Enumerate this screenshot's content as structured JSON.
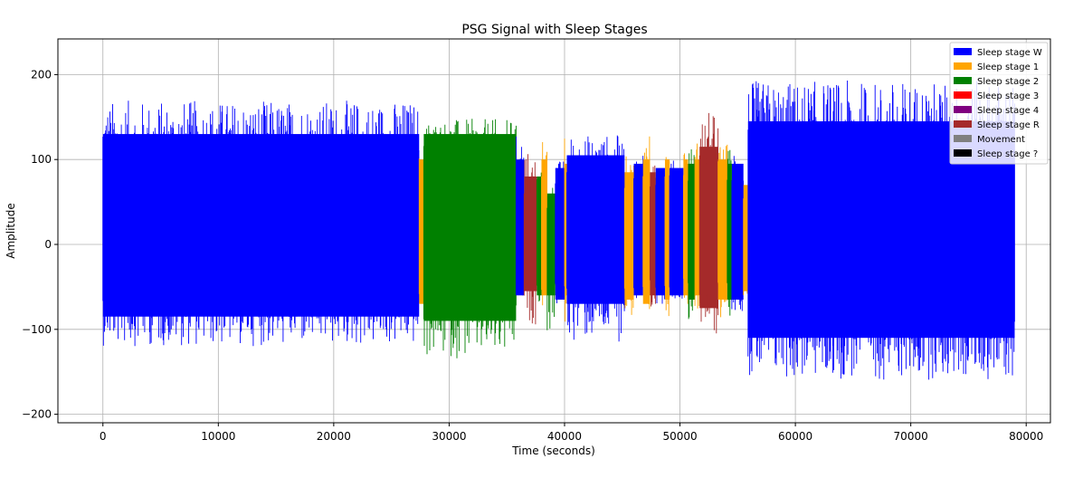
{
  "chart_data": {
    "type": "line",
    "title": "PSG Signal with Sleep Stages",
    "xlabel": "Time (seconds)",
    "ylabel": "Amplitude",
    "xlim": [
      -3900,
      82100
    ],
    "ylim": [
      -210,
      242
    ],
    "xticks": [
      0,
      10000,
      20000,
      30000,
      40000,
      50000,
      60000,
      70000,
      80000
    ],
    "yticks": [
      -200,
      -100,
      0,
      100,
      200
    ],
    "grid": true,
    "legend_position": "top-right",
    "legend": [
      {
        "name": "Sleep stage W",
        "color": "#0000ff"
      },
      {
        "name": "Sleep stage 1",
        "color": "#ffa500"
      },
      {
        "name": "Sleep stage 2",
        "color": "#008000"
      },
      {
        "name": "Sleep stage 3",
        "color": "#ff0000"
      },
      {
        "name": "Sleep stage 4",
        "color": "#800080"
      },
      {
        "name": "Sleep stage R",
        "color": "#a52a2a"
      },
      {
        "name": "Movement",
        "color": "#808080"
      },
      {
        "name": "Sleep stage ?",
        "color": "#000000"
      }
    ],
    "segments": [
      {
        "stage": "Sleep stage W",
        "start": 0,
        "end": 27400,
        "amplitude": [
          -85,
          130
        ],
        "peaks": [
          -120,
          170
        ]
      },
      {
        "stage": "Sleep stage 1",
        "start": 27400,
        "end": 27800,
        "amplitude": [
          -70,
          100
        ],
        "peaks": [
          -75,
          105
        ]
      },
      {
        "stage": "Sleep stage 2",
        "start": 27800,
        "end": 35800,
        "amplitude": [
          -90,
          130
        ],
        "peaks": [
          -135,
          148
        ]
      },
      {
        "stage": "Sleep stage W",
        "start": 35800,
        "end": 36500,
        "amplitude": [
          -60,
          100
        ],
        "peaks": [
          -70,
          130
        ]
      },
      {
        "stage": "Sleep stage R",
        "start": 36500,
        "end": 37600,
        "amplitude": [
          -55,
          80
        ],
        "peaks": [
          -95,
          115
        ]
      },
      {
        "stage": "Sleep stage 2",
        "start": 37600,
        "end": 38000,
        "amplitude": [
          -60,
          80
        ],
        "peaks": [
          -70,
          90
        ]
      },
      {
        "stage": "Sleep stage 1",
        "start": 38000,
        "end": 38500,
        "amplitude": [
          -60,
          100
        ],
        "peaks": [
          -80,
          125
        ]
      },
      {
        "stage": "Sleep stage 2",
        "start": 38500,
        "end": 39200,
        "amplitude": [
          -60,
          60
        ],
        "peaks": [
          -108,
          75
        ]
      },
      {
        "stage": "Sleep stage W",
        "start": 39200,
        "end": 40000,
        "amplitude": [
          -65,
          90
        ],
        "peaks": [
          -75,
          100
        ]
      },
      {
        "stage": "Sleep stage 1",
        "start": 40000,
        "end": 40200,
        "amplitude": [
          -60,
          95
        ],
        "peaks": [
          -100,
          135
        ]
      },
      {
        "stage": "Sleep stage W",
        "start": 40200,
        "end": 45200,
        "amplitude": [
          -70,
          105
        ],
        "peaks": [
          -115,
          130
        ]
      },
      {
        "stage": "Sleep stage 1",
        "start": 45200,
        "end": 46000,
        "amplitude": [
          -65,
          85
        ],
        "peaks": [
          -88,
          105
        ]
      },
      {
        "stage": "Sleep stage W",
        "start": 46000,
        "end": 46800,
        "amplitude": [
          -60,
          95
        ],
        "peaks": [
          -75,
          115
        ]
      },
      {
        "stage": "Sleep stage 1",
        "start": 46800,
        "end": 47400,
        "amplitude": [
          -70,
          100
        ],
        "peaks": [
          -95,
          130
        ]
      },
      {
        "stage": "Sleep stage R",
        "start": 47400,
        "end": 47900,
        "amplitude": [
          -60,
          85
        ],
        "peaks": [
          -90,
          95
        ]
      },
      {
        "stage": "Sleep stage W",
        "start": 47900,
        "end": 48700,
        "amplitude": [
          -60,
          90
        ],
        "peaks": [
          -70,
          100
        ]
      },
      {
        "stage": "Sleep stage 1",
        "start": 48700,
        "end": 49100,
        "amplitude": [
          -65,
          100
        ],
        "peaks": [
          -85,
          125
        ]
      },
      {
        "stage": "Sleep stage W",
        "start": 49100,
        "end": 50300,
        "amplitude": [
          -60,
          90
        ],
        "peaks": [
          -65,
          100
        ]
      },
      {
        "stage": "Sleep stage 1",
        "start": 50300,
        "end": 50700,
        "amplitude": [
          -60,
          100
        ],
        "peaks": [
          -70,
          125
        ]
      },
      {
        "stage": "Sleep stage 2",
        "start": 50700,
        "end": 51300,
        "amplitude": [
          -65,
          95
        ],
        "peaks": [
          -95,
          118
        ]
      },
      {
        "stage": "Sleep stage 1",
        "start": 51300,
        "end": 51700,
        "amplitude": [
          -60,
          100
        ],
        "peaks": [
          -80,
          125
        ]
      },
      {
        "stage": "Sleep stage R",
        "start": 51700,
        "end": 53300,
        "amplitude": [
          -75,
          115
        ],
        "peaks": [
          -108,
          157
        ]
      },
      {
        "stage": "Sleep stage 1",
        "start": 53300,
        "end": 54100,
        "amplitude": [
          -65,
          100
        ],
        "peaks": [
          -90,
          120
        ]
      },
      {
        "stage": "Sleep stage 2",
        "start": 54100,
        "end": 54500,
        "amplitude": [
          -65,
          95
        ],
        "peaks": [
          -85,
          115
        ]
      },
      {
        "stage": "Sleep stage W",
        "start": 54500,
        "end": 55500,
        "amplitude": [
          -65,
          95
        ],
        "peaks": [
          -80,
          110
        ]
      },
      {
        "stage": "Sleep stage 1",
        "start": 55500,
        "end": 55900,
        "amplitude": [
          -55,
          70
        ],
        "peaks": [
          -60,
          80
        ]
      },
      {
        "stage": "Sleep stage W",
        "start": 55900,
        "end": 79000,
        "amplitude": [
          -110,
          145
        ],
        "peaks": [
          -160,
          193
        ]
      }
    ]
  }
}
